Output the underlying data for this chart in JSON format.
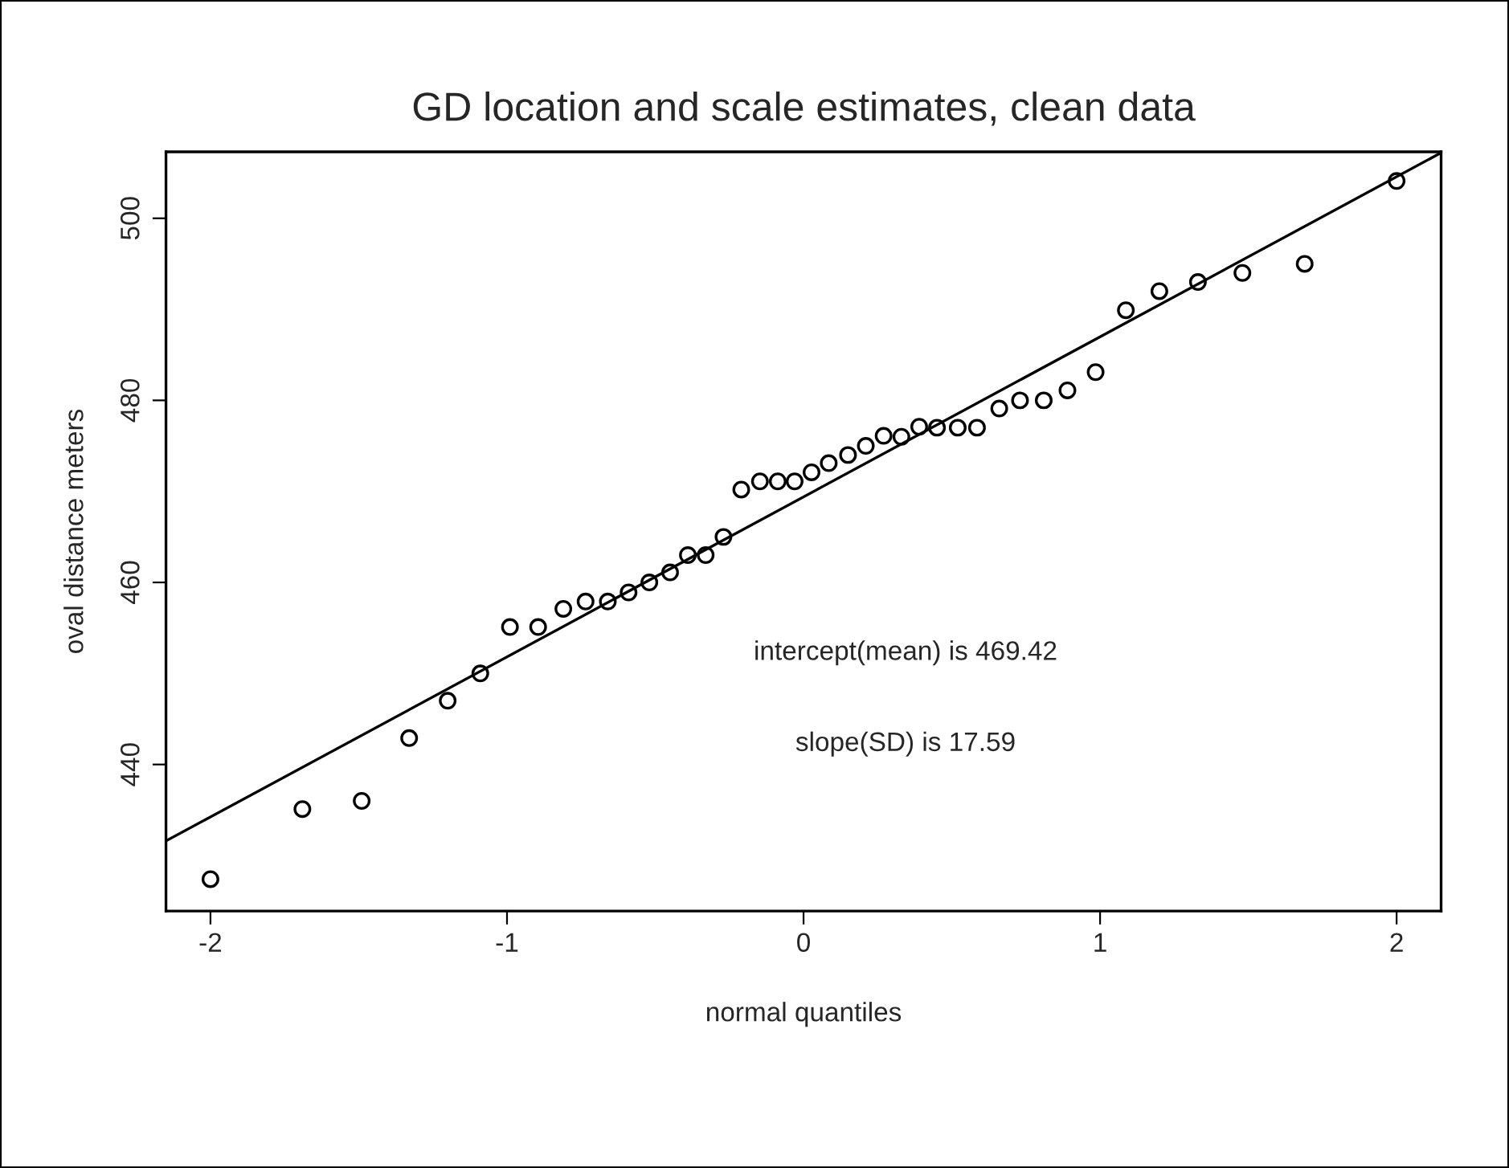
{
  "chart_data": {
    "type": "scatter",
    "title": "GD location and scale estimates, clean data",
    "xlabel": "normal quantiles",
    "ylabel": "oval distance meters",
    "marker": "circle",
    "grid": false,
    "legend": false,
    "xlim": [
      -2.15,
      2.15
    ],
    "ylim": [
      423.9,
      507.3
    ],
    "xticks": [
      -2,
      -1,
      0,
      1,
      2
    ],
    "yticks": [
      440,
      460,
      480,
      500
    ],
    "annotations": [
      "intercept(mean) is 469.42",
      "slope(SD) is 17.59"
    ],
    "series": [
      {
        "color": "#000000",
        "x": [
          -2.0,
          -1.69,
          -1.49,
          -1.33,
          -1.2,
          -1.09,
          -0.99,
          -0.895,
          -0.81,
          -0.735,
          -0.66,
          -0.59,
          -0.52,
          -0.45,
          -0.39,
          -0.33,
          -0.27,
          -0.21,
          -0.147,
          -0.087,
          -0.03,
          0.027,
          0.085,
          0.15,
          0.21,
          0.27,
          0.33,
          0.39,
          0.45,
          0.52,
          0.585,
          0.66,
          0.73,
          0.81,
          0.89,
          0.985,
          1.087,
          1.2,
          1.33,
          1.48,
          1.69,
          2.0
        ],
        "values": [
          427.4,
          435.1,
          436.0,
          442.9,
          447.0,
          450.0,
          455.1,
          455.1,
          457.1,
          457.9,
          457.9,
          458.9,
          460.0,
          461.1,
          463.0,
          463.0,
          465.0,
          470.2,
          471.1,
          471.1,
          471.1,
          472.1,
          473.1,
          474.0,
          475.0,
          476.1,
          476.0,
          477.1,
          477.0,
          477.0,
          477.0,
          479.1,
          480.0,
          480.0,
          481.1,
          483.1,
          489.9,
          492.0,
          493.0,
          494.0,
          495.0,
          504.1
        ]
      },
      {
        "type": "line",
        "color": "#000000",
        "marker": "none",
        "line_style": "solid",
        "x": [
          -2.15,
          2.15
        ],
        "values": [
          431.6,
          507.2
        ]
      }
    ]
  }
}
